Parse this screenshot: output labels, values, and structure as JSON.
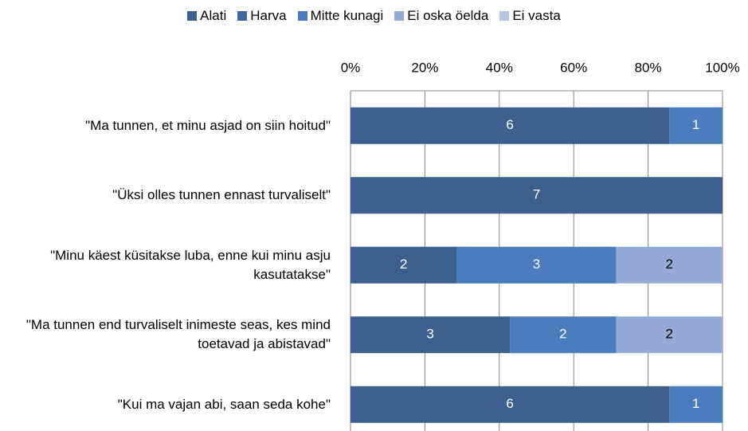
{
  "chart_data": {
    "type": "bar",
    "orientation": "horizontal",
    "stacked": "percent",
    "categories": [
      "\"Ma tunnen, et minu asjad on siin hoitud\"",
      "\"Üksi olles tunnen ennast turvaliselt\"",
      "\"Minu käest küsitakse luba, enne kui minu asju kasutatakse\"",
      "\"Ma tunnen end turvaliselt inimeste seas, kes mind toetavad ja abistavad\"",
      "\"Kui ma vajan abi, saan seda kohe\""
    ],
    "series": [
      {
        "name": "Alati",
        "color": "#3c5f8e",
        "values": [
          6,
          7,
          2,
          3,
          6
        ]
      },
      {
        "name": "Harva",
        "color": "#3f67a2",
        "values": [
          0,
          0,
          0,
          0,
          0
        ]
      },
      {
        "name": "Mitte kunagi",
        "color": "#4a7dbd",
        "values": [
          1,
          0,
          3,
          2,
          1
        ]
      },
      {
        "name": "Ei oska öelda",
        "color": "#95aad4",
        "values": [
          0,
          0,
          2,
          2,
          0
        ]
      },
      {
        "name": "Ei vasta",
        "color": "#b9c6e3",
        "values": [
          0,
          0,
          0,
          0,
          0
        ]
      }
    ],
    "xlim": [
      0,
      100
    ],
    "xticks": [
      {
        "value": 0,
        "label": "0%"
      },
      {
        "value": 20,
        "label": "20%"
      },
      {
        "value": 40,
        "label": "40%"
      },
      {
        "value": 60,
        "label": "60%"
      },
      {
        "value": 80,
        "label": "80%"
      },
      {
        "value": 100,
        "label": "100%"
      }
    ],
    "grid": true,
    "legend": "top"
  }
}
